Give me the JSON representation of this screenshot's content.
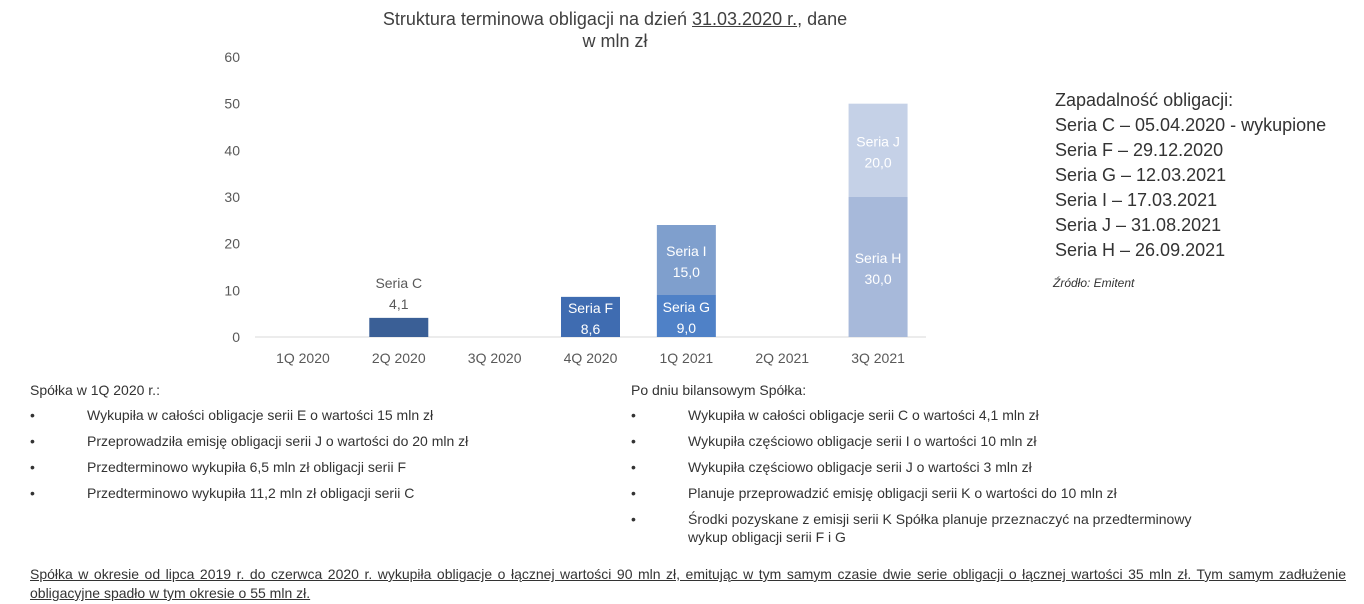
{
  "chart_data": {
    "type": "bar",
    "stacked": true,
    "title_pre": "Struktura terminowa obligacji na dzień ",
    "title_date": "31.03.2020 r.",
    "title_post": ", dane",
    "title_line2": "w mln zł",
    "categories": [
      "1Q 2020",
      "2Q 2020",
      "3Q 2020",
      "4Q 2020",
      "1Q 2021",
      "2Q 2021",
      "3Q 2021"
    ],
    "ylim": [
      0,
      60
    ],
    "yticks": [
      0,
      10,
      20,
      30,
      40,
      50,
      60
    ],
    "segments": [
      {
        "category": "2Q 2020",
        "name": "Seria C",
        "value": 4.1,
        "label": "4,1",
        "color": "#3a5f96",
        "label_position": "above"
      },
      {
        "category": "4Q 2020",
        "name": "Seria F",
        "value": 8.6,
        "label": "8,6",
        "color": "#3f6cb1",
        "label_position": "inside"
      },
      {
        "category": "1Q 2021",
        "name": "Seria G",
        "value": 9.0,
        "label": "9,0",
        "color": "#4f81c7",
        "label_position": "inside"
      },
      {
        "category": "1Q 2021",
        "name": "Seria I",
        "value": 15.0,
        "label": "15,0",
        "color": "#7f9fcd",
        "label_position": "inside"
      },
      {
        "category": "3Q 2021",
        "name": "Seria H",
        "value": 30.0,
        "label": "30,0",
        "color": "#a7b9da",
        "label_position": "inside"
      },
      {
        "category": "3Q 2021",
        "name": "Seria J",
        "value": 20.0,
        "label": "20,0",
        "color": "#c5d1e7",
        "label_position": "inside"
      }
    ]
  },
  "maturity": {
    "heading": "Zapadalność obligacji:",
    "items": [
      "Seria C – 05.04.2020 - wykupione",
      "Seria F – 29.12.2020",
      "Seria G – 12.03.2021",
      "Seria I – 17.03.2021",
      "Seria J – 31.08.2021",
      "Seria H – 26.09.2021"
    ]
  },
  "source": "Źródło: Emitent",
  "left_column": {
    "title": "Spółka w 1Q 2020 r.:",
    "items": [
      "Wykupiła w całości obligacje serii E o wartości 15 mln zł",
      "Przeprowadziła emisję obligacji serii J o wartości do 20 mln zł",
      "Przedterminowo wykupiła 6,5 mln zł obligacji serii F",
      "Przedterminowo wykupiła 11,2 mln zł obligacji serii C"
    ]
  },
  "right_column": {
    "title": "Po dniu bilansowym Spółka:",
    "items": [
      "Wykupiła w całości obligacje serii C o wartości 4,1 mln zł",
      "Wykupiła częściowo obligacje serii I o wartości 10 mln zł",
      "Wykupiła częściowo obligacje serii J o wartości 3 mln zł",
      "Planuje przeprowadzić emisję obligacji serii K o wartości do 10 mln zł",
      "Środki pozyskane z emisji serii K Spółka planuje przeznaczyć na przedterminowy wykup obligacji serii F i G"
    ]
  },
  "bullet_glyph": "•",
  "footer": "Spółka w okresie od lipca 2019 r. do czerwca 2020 r. wykupiła obligacje o łącznej wartości 90 mln zł, emitując w tym samym czasie dwie serie obligacji o łącznej wartości 35 mln zł. Tym samym zadłużenie obligacyjne spadło w tym okresie o 55 mln zł."
}
